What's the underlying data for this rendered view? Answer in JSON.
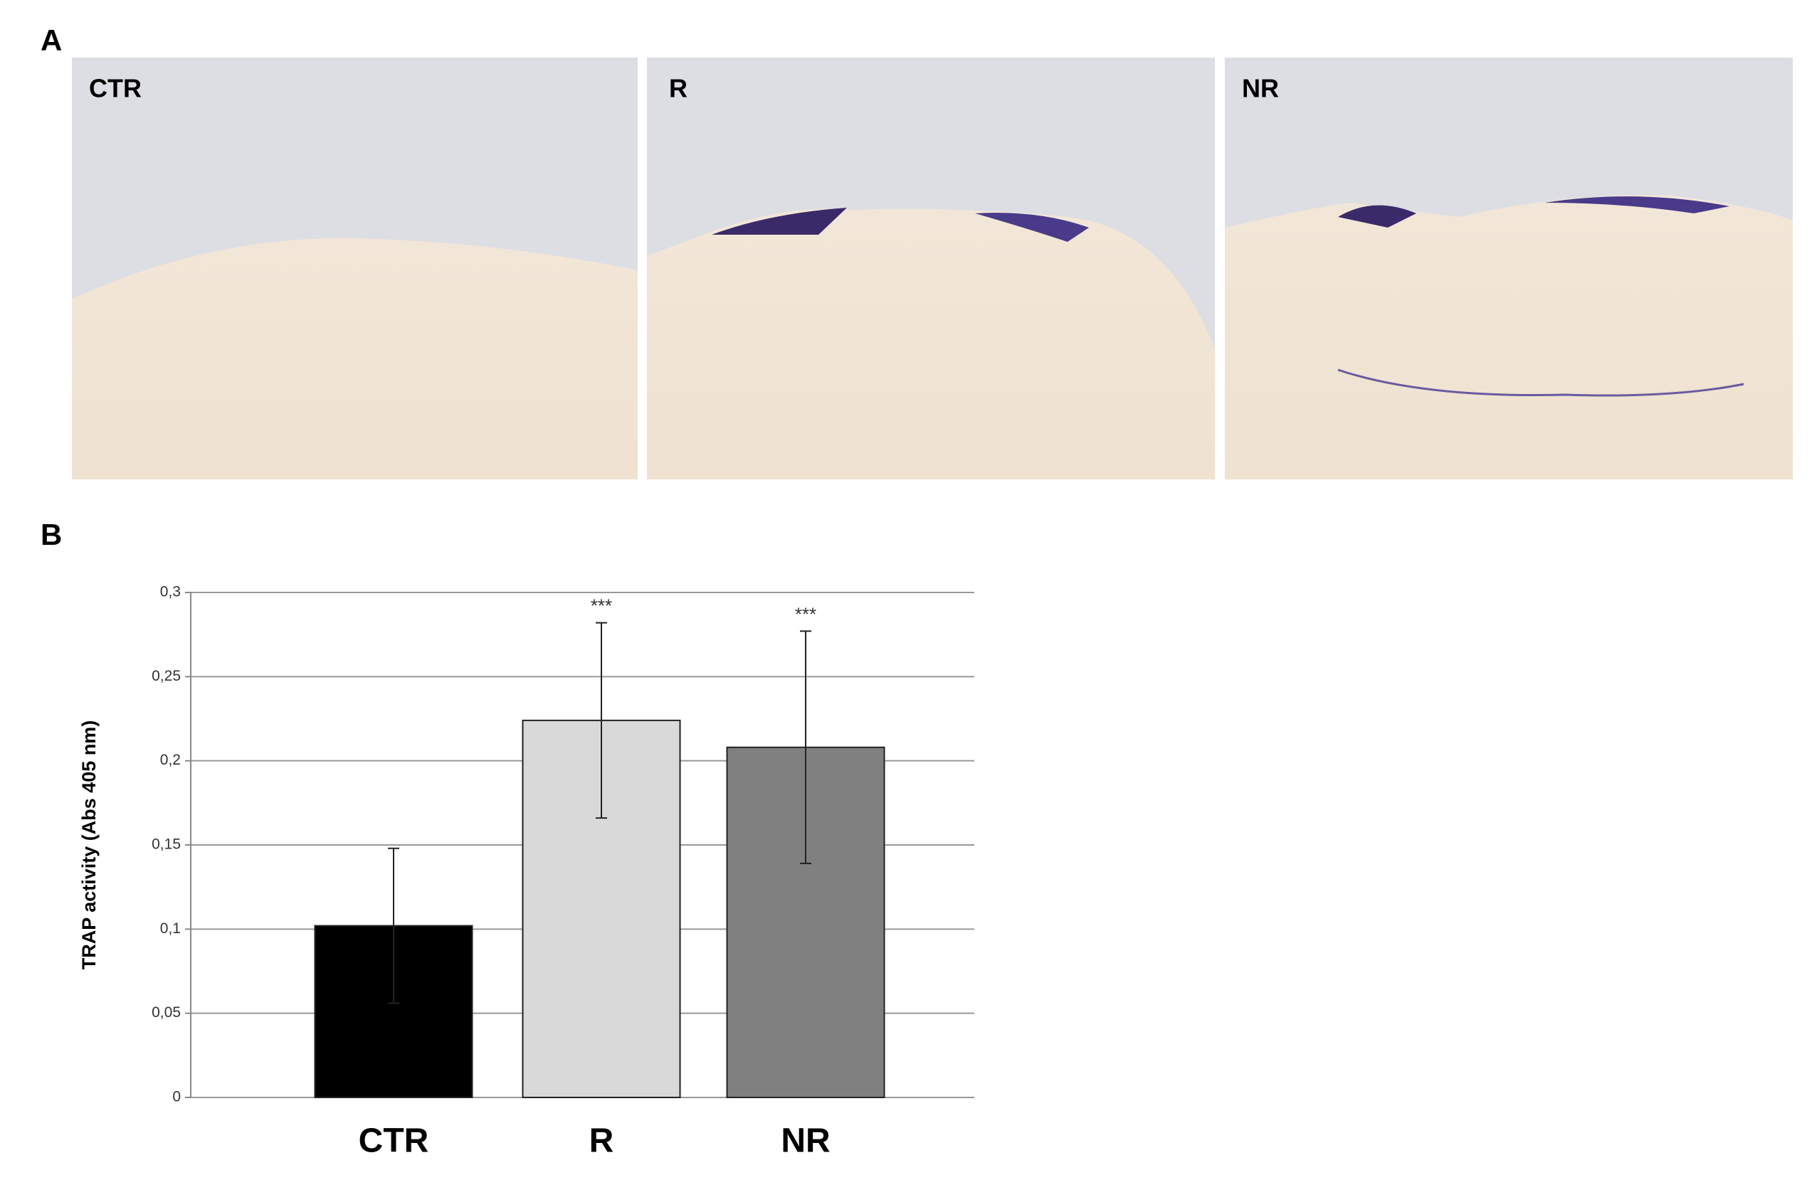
{
  "figure": {
    "panel_a_label": "A",
    "panel_b_label": "B",
    "image_labels": [
      "CTR",
      "R",
      "NR"
    ]
  },
  "chart_data": {
    "type": "bar",
    "y_label": "TRAP activity (Abs 405 nm)",
    "categories": [
      "CTR",
      "R",
      "NR"
    ],
    "values": [
      0.102,
      0.224,
      0.208
    ],
    "errors": [
      0.046,
      0.058,
      0.069
    ],
    "annotations": [
      null,
      "***",
      "***"
    ],
    "colors": [
      "#000000",
      "#d9d9d9",
      "#808080"
    ],
    "ylim": [
      0,
      0.3
    ],
    "yticks": [
      0,
      {
        "value": 0.05,
        "label": "0,05"
      },
      {
        "value": 0.1,
        "label": "0,1"
      },
      {
        "value": 0.15,
        "label": "0,15"
      },
      {
        "value": 0.2,
        "label": "0,2"
      },
      {
        "value": 0.25,
        "label": "0,25"
      },
      {
        "value": 0.3,
        "label": "0,3"
      }
    ],
    "grid": true
  }
}
